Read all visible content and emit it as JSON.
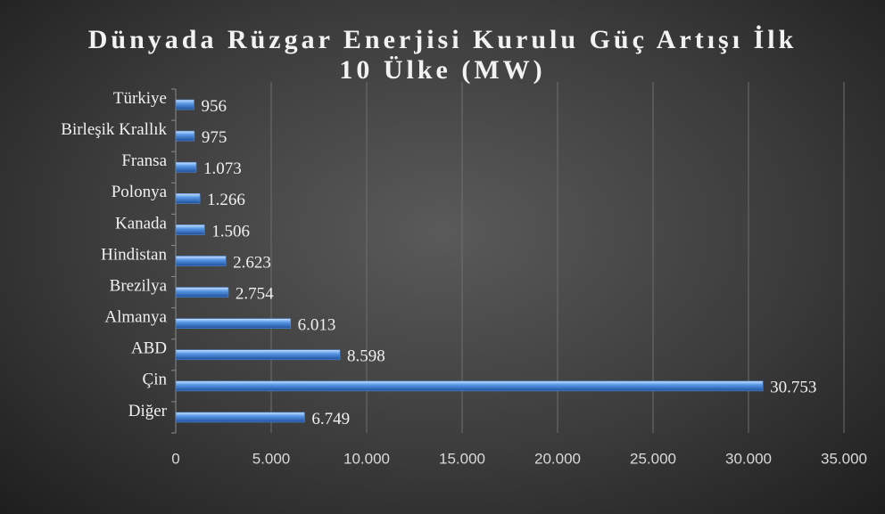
{
  "chart_data": {
    "type": "bar",
    "orientation": "horizontal",
    "title": "Dünyada Rüzgar Enerjisi Kurulu Güç Artışı İlk 10 Ülke (MW)",
    "categories": [
      "Türkiye",
      "Birleşik Krallık",
      "Fransa",
      "Polonya",
      "Kanada",
      "Hindistan",
      "Brezilya",
      "Almanya",
      "ABD",
      "Çin",
      "Diğer"
    ],
    "values": [
      956,
      975,
      1073,
      1266,
      1506,
      2623,
      2754,
      6013,
      8598,
      30753,
      6749
    ],
    "value_labels": [
      "956",
      "975",
      "1.073",
      "1.266",
      "1.506",
      "2.623",
      "2.754",
      "6.013",
      "8.598",
      "30.753",
      "6.749"
    ],
    "color": "#4f8fe0",
    "xlim": [
      0,
      35000
    ],
    "xticks": [
      0,
      {
        "value": 5000,
        "label": "5.000"
      },
      {
        "value": 10000,
        "label": "10.000"
      },
      {
        "value": 15000,
        "label": "15.000"
      },
      {
        "value": 20000,
        "label": "20.000"
      },
      {
        "value": 25000,
        "label": "25.000"
      },
      {
        "value": 30000,
        "label": "30.000"
      },
      {
        "value": 35000,
        "label": "35.000"
      }
    ],
    "grid": true
  }
}
